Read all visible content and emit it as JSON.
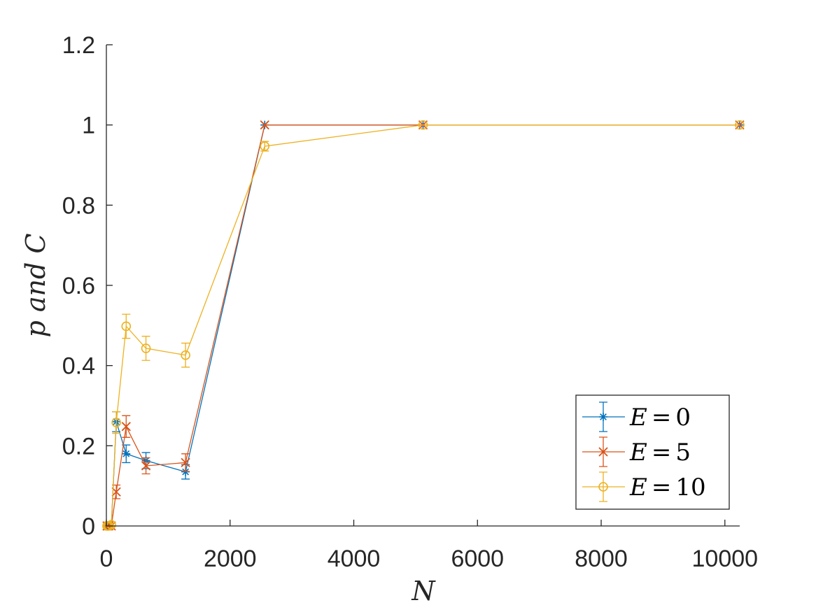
{
  "chart_data": {
    "type": "line",
    "xlabel": "N",
    "ylabel": "p and C",
    "xlim": [
      0,
      10240
    ],
    "ylim": [
      0,
      1.2
    ],
    "xticks": [
      0,
      2000,
      4000,
      6000,
      8000,
      10000
    ],
    "xtick_labels": [
      "0",
      "2000",
      "4000",
      "6000",
      "8000",
      "10000"
    ],
    "yticks": [
      0,
      0.2,
      0.4,
      0.6,
      0.8,
      1,
      1.2
    ],
    "ytick_labels": [
      "0",
      "0.2",
      "0.4",
      "0.6",
      "0.8",
      "1",
      "1.2"
    ],
    "grid": false,
    "legend_position": "bottom-right",
    "x": [
      10,
      20,
      40,
      80,
      160,
      320,
      640,
      1280,
      2560,
      5120,
      10240
    ],
    "series": [
      {
        "name": "E = 0",
        "label_var": "E",
        "label_val": "0",
        "color": "#0072BD",
        "marker": "asterisk",
        "values": [
          0,
          0,
          0,
          0,
          0.26,
          0.18,
          0.163,
          0.135,
          1,
          1,
          1
        ],
        "errors": [
          0,
          0,
          0,
          0,
          0.025,
          0.022,
          0.02,
          0.018,
          0,
          0,
          0
        ]
      },
      {
        "name": "E = 5",
        "label_var": "E",
        "label_val": "5",
        "color": "#D95319",
        "marker": "x",
        "values": [
          0,
          0,
          0,
          0,
          0.085,
          0.248,
          0.15,
          0.158,
          1,
          1,
          1
        ],
        "errors": [
          0,
          0,
          0,
          0,
          0.017,
          0.027,
          0.02,
          0.022,
          0,
          0,
          0
        ]
      },
      {
        "name": "E = 10",
        "label_var": "E",
        "label_val": "10",
        "color": "#EDB120",
        "marker": "circle",
        "values": [
          0,
          0,
          0,
          0.003,
          0.258,
          0.498,
          0.443,
          0.426,
          0.947,
          1,
          1
        ],
        "errors": [
          0,
          0,
          0,
          0.004,
          0.027,
          0.03,
          0.03,
          0.03,
          0.012,
          0,
          0
        ]
      }
    ]
  }
}
